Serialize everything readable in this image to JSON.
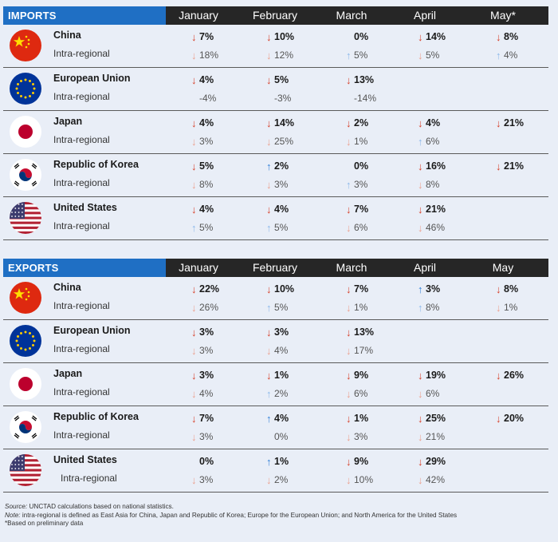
{
  "colors": {
    "header_bg": "#262626",
    "section_label_bg": "#1f6fc4",
    "arrow_up": "#2f7fd8",
    "arrow_down": "#d6402a",
    "page_bg": "#e9eef7"
  },
  "chart_data": [
    {
      "type": "table",
      "title": "IMPORTS",
      "months": [
        "January",
        "February",
        "March",
        "April",
        "May*"
      ],
      "row_sublabel": "Intra-regional",
      "rows": [
        {
          "country": "China",
          "flag_icon": "china-flag-icon",
          "total": [
            {
              "dir": "down",
              "text": "7%"
            },
            {
              "dir": "down",
              "text": "10%"
            },
            {
              "dir": "",
              "text": "0%"
            },
            {
              "dir": "down",
              "text": "14%"
            },
            {
              "dir": "down",
              "text": "8%"
            }
          ],
          "intra": [
            {
              "dir": "down",
              "text": "18%"
            },
            {
              "dir": "down",
              "text": "12%"
            },
            {
              "dir": "up",
              "text": "5%"
            },
            {
              "dir": "down",
              "text": "5%"
            },
            {
              "dir": "up",
              "text": "4%"
            }
          ]
        },
        {
          "country": "European Union",
          "flag_icon": "eu-flag-icon",
          "total": [
            {
              "dir": "down",
              "text": "4%"
            },
            {
              "dir": "down",
              "text": "5%"
            },
            {
              "dir": "down",
              "text": "13%"
            },
            null,
            null
          ],
          "intra": [
            {
              "dir": "",
              "text": "-4%"
            },
            {
              "dir": "",
              "text": "-3%"
            },
            {
              "dir": "",
              "text": "-14%"
            },
            null,
            null
          ]
        },
        {
          "country": "Japan",
          "flag_icon": "japan-flag-icon",
          "total": [
            {
              "dir": "down",
              "text": "4%"
            },
            {
              "dir": "down",
              "text": "14%"
            },
            {
              "dir": "down",
              "text": "2%"
            },
            {
              "dir": "down",
              "text": "4%"
            },
            {
              "dir": "down",
              "text": "21%"
            }
          ],
          "intra": [
            {
              "dir": "down",
              "text": "3%"
            },
            {
              "dir": "down",
              "text": "25%"
            },
            {
              "dir": "down",
              "text": "1%"
            },
            {
              "dir": "up",
              "text": "6%"
            },
            null
          ]
        },
        {
          "country": "Republic of Korea",
          "flag_icon": "korea-flag-icon",
          "total": [
            {
              "dir": "down",
              "text": "5%"
            },
            {
              "dir": "up",
              "text": "2%"
            },
            {
              "dir": "",
              "text": "0%"
            },
            {
              "dir": "down",
              "text": "16%"
            },
            {
              "dir": "down",
              "text": "21%"
            }
          ],
          "intra": [
            {
              "dir": "down",
              "text": "8%"
            },
            {
              "dir": "down",
              "text": "3%"
            },
            {
              "dir": "up",
              "text": "3%"
            },
            {
              "dir": "down",
              "text": "8%"
            },
            null
          ]
        },
        {
          "country": "United States",
          "flag_icon": "us-flag-icon",
          "total": [
            {
              "dir": "down",
              "text": "4%"
            },
            {
              "dir": "down",
              "text": "4%"
            },
            {
              "dir": "down",
              "text": "7%"
            },
            {
              "dir": "down",
              "text": "21%"
            },
            null
          ],
          "intra": [
            {
              "dir": "up",
              "text": "5%"
            },
            {
              "dir": "up",
              "text": "5%"
            },
            {
              "dir": "down",
              "text": "6%"
            },
            {
              "dir": "down",
              "text": "46%"
            },
            null
          ]
        }
      ]
    },
    {
      "type": "table",
      "title": "EXPORTS",
      "months": [
        "January",
        "February",
        "March",
        "April",
        "May"
      ],
      "row_sublabel": "Intra-regional",
      "rows": [
        {
          "country": "China",
          "flag_icon": "china-flag-icon",
          "total": [
            {
              "dir": "down",
              "text": "22%"
            },
            {
              "dir": "down",
              "text": "10%"
            },
            {
              "dir": "down",
              "text": "7%"
            },
            {
              "dir": "up",
              "text": "3%"
            },
            {
              "dir": "down",
              "text": "8%"
            }
          ],
          "intra": [
            {
              "dir": "down",
              "text": "26%"
            },
            {
              "dir": "up",
              "text": "5%"
            },
            {
              "dir": "down",
              "text": "1%"
            },
            {
              "dir": "up",
              "text": "8%"
            },
            {
              "dir": "down",
              "text": "1%"
            }
          ]
        },
        {
          "country": "European Union",
          "flag_icon": "eu-flag-icon",
          "total": [
            {
              "dir": "down",
              "text": "3%"
            },
            {
              "dir": "down",
              "text": "3%"
            },
            {
              "dir": "down",
              "text": "13%"
            },
            null,
            null
          ],
          "intra": [
            {
              "dir": "down",
              "text": "3%"
            },
            {
              "dir": "down",
              "text": "4%"
            },
            {
              "dir": "down",
              "text": "17%"
            },
            null,
            null
          ]
        },
        {
          "country": "Japan",
          "flag_icon": "japan-flag-icon",
          "total": [
            {
              "dir": "down",
              "text": "3%"
            },
            {
              "dir": "down",
              "text": "1%"
            },
            {
              "dir": "down",
              "text": "9%"
            },
            {
              "dir": "down",
              "text": "19%"
            },
            {
              "dir": "down",
              "text": "26%"
            }
          ],
          "intra": [
            {
              "dir": "down",
              "text": "4%"
            },
            {
              "dir": "up",
              "text": "2%"
            },
            {
              "dir": "down",
              "text": "6%"
            },
            {
              "dir": "down",
              "text": "6%"
            },
            null
          ]
        },
        {
          "country": "Republic of Korea",
          "flag_icon": "korea-flag-icon",
          "total": [
            {
              "dir": "down",
              "text": "7%"
            },
            {
              "dir": "up",
              "text": "4%"
            },
            {
              "dir": "down",
              "text": "1%"
            },
            {
              "dir": "down",
              "text": "25%"
            },
            {
              "dir": "down",
              "text": "20%"
            }
          ],
          "intra": [
            {
              "dir": "down",
              "text": "3%"
            },
            {
              "dir": "",
              "text": "0%"
            },
            {
              "dir": "down",
              "text": "3%"
            },
            {
              "dir": "down",
              "text": "21%"
            },
            null
          ]
        },
        {
          "country": "United States",
          "flag_icon": "us-flag-icon",
          "total": [
            {
              "dir": "",
              "text": "0%"
            },
            {
              "dir": "up",
              "text": "1%"
            },
            {
              "dir": "down",
              "text": "9%"
            },
            {
              "dir": "down",
              "text": "29%"
            },
            null
          ],
          "intra": [
            {
              "dir": "down",
              "text": "3%"
            },
            {
              "dir": "down",
              "text": "2%"
            },
            {
              "dir": "down",
              "text": "10%"
            },
            {
              "dir": "down",
              "text": "42%"
            },
            null
          ]
        }
      ]
    }
  ],
  "footer": {
    "source_label": "Source:",
    "source_text": " UNCTAD calculations based on national statistics.",
    "note_label": "Note:",
    "note_text": " intra-regional is defined as East Asia for China, Japan and Republic of Korea; Europe for the European Union; and North America for the United States",
    "asterisk_text": "*Based on preliminary data"
  }
}
